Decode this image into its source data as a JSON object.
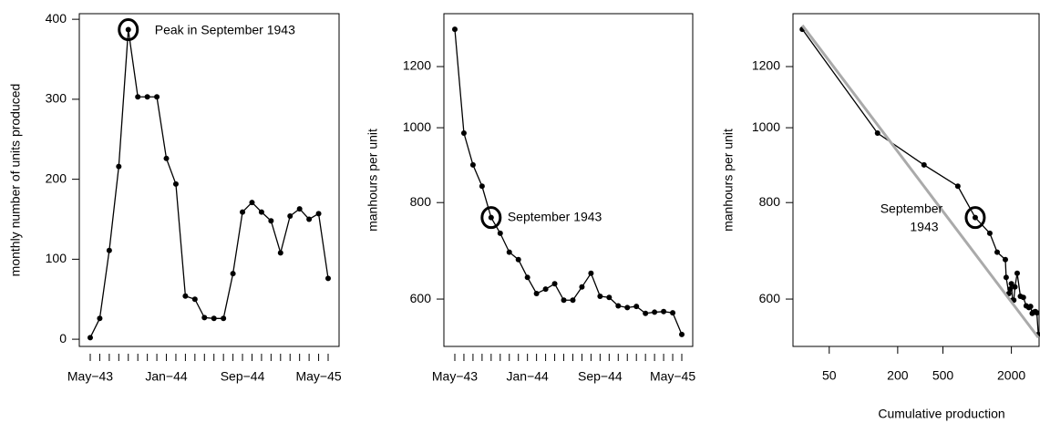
{
  "chart_data": [
    {
      "type": "line",
      "categories": [
        "May−43",
        null,
        null,
        null,
        null,
        null,
        null,
        null,
        "Jan−44",
        null,
        null,
        null,
        null,
        null,
        null,
        null,
        "Sep−44",
        null,
        null,
        null,
        null,
        null,
        null,
        null,
        "May−45",
        null
      ],
      "values": [
        2,
        26,
        111,
        216,
        387,
        303,
        303,
        303,
        226,
        194,
        54,
        50,
        27,
        26,
        26,
        82,
        159,
        171,
        159,
        148,
        108,
        154,
        163,
        150,
        157,
        76
      ],
      "color": "#000000",
      "ylim": [
        -9,
        407
      ],
      "yticks": [
        0,
        100,
        200,
        300,
        400
      ],
      "y_label": "monthly number of units produced",
      "annotation": {
        "lines": [
          "Peak in September 1943"
        ],
        "highlight_index": 4
      }
    },
    {
      "type": "line",
      "categories": [
        "May−43",
        null,
        null,
        null,
        null,
        null,
        null,
        null,
        "Jan−44",
        null,
        null,
        null,
        null,
        null,
        null,
        null,
        "Sep−44",
        null,
        null,
        null,
        null,
        null,
        null,
        null,
        "May−45",
        null
      ],
      "values": [
        1341,
        984,
        895,
        840,
        765,
        730,
        690,
        675,
        640,
        610,
        618,
        628,
        598,
        598,
        622,
        648,
        605,
        603,
        588,
        585,
        587,
        575,
        577,
        578,
        576,
        540
      ],
      "color": "#000000",
      "log_y": true,
      "ylim": [
        521,
        1405
      ],
      "yticks": [
        600,
        800,
        1000,
        1200
      ],
      "y_label": "manhours per unit",
      "annotation": {
        "lines": [
          "September 1943"
        ],
        "highlight_index": 4
      }
    },
    {
      "type": "line",
      "x": [
        29,
        133,
        341,
        676,
        962,
        1292,
        1500,
        1770,
        1800,
        1900,
        1950,
        2000,
        2050,
        2100,
        2150,
        2250,
        2400,
        2550,
        2700,
        2850,
        2950,
        3050,
        3150,
        3250,
        3350,
        3450
      ],
      "values": [
        1341,
        984,
        895,
        840,
        765,
        730,
        690,
        675,
        640,
        610,
        618,
        628,
        598,
        598,
        622,
        648,
        605,
        603,
        588,
        585,
        587,
        575,
        577,
        578,
        576,
        540
      ],
      "color": "#000000",
      "fit": {
        "x": [
          29,
          3450
        ],
        "values": [
          1357,
          535
        ],
        "color": "#aaaaaa"
      },
      "log_x": true,
      "xlim": [
        24,
        3505
      ],
      "xticks": [
        50,
        200,
        500,
        2000
      ],
      "log_y": true,
      "ylim": [
        521,
        1405
      ],
      "yticks": [
        600,
        800,
        1000,
        1200
      ],
      "x_label": "Cumulative production",
      "y_label": "manhours per unit",
      "annotation": {
        "lines": [
          "September",
          "1943"
        ],
        "highlight_index": 4
      }
    }
  ]
}
